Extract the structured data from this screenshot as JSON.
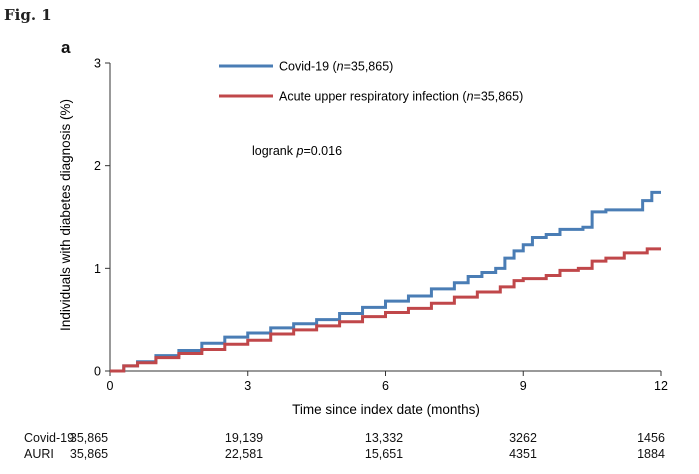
{
  "figure": {
    "label": "Fig. 1",
    "panel": "a"
  },
  "chart_data": {
    "type": "line",
    "title": "",
    "xlabel": "Time since index date (months)",
    "ylabel": "Individuals with diabetes diagnosis (%)",
    "xlim": [
      0,
      12
    ],
    "ylim": [
      0,
      3
    ],
    "xticks": [
      0,
      3,
      6,
      9,
      12
    ],
    "yticks": [
      0,
      1,
      2,
      3
    ],
    "grid": false,
    "legend_position": "top-center",
    "annotation": {
      "prefix": "logrank ",
      "italic": "p",
      "suffix": "=0.016"
    },
    "series": [
      {
        "name": "Covid-19",
        "legend_n": "n",
        "legend_value": "=35,865",
        "color": "#4a7db5",
        "x": [
          0,
          0.3,
          0.6,
          1.0,
          1.5,
          2.0,
          2.5,
          3.0,
          3.5,
          4.0,
          4.5,
          5.0,
          5.5,
          6.0,
          6.5,
          7.0,
          7.5,
          7.8,
          8.1,
          8.4,
          8.6,
          8.8,
          9.0,
          9.2,
          9.5,
          9.8,
          10.0,
          10.3,
          10.5,
          10.8,
          11.2,
          11.6,
          11.8,
          12.0
        ],
        "y": [
          0,
          0.05,
          0.09,
          0.15,
          0.2,
          0.27,
          0.33,
          0.37,
          0.42,
          0.46,
          0.5,
          0.56,
          0.62,
          0.68,
          0.73,
          0.8,
          0.86,
          0.92,
          0.96,
          1.0,
          1.1,
          1.17,
          1.23,
          1.3,
          1.33,
          1.38,
          1.38,
          1.4,
          1.55,
          1.57,
          1.57,
          1.66,
          1.74,
          1.74
        ]
      },
      {
        "name": "Acute upper respiratory infection",
        "legend_n": "n",
        "legend_value": "=35,865",
        "color": "#c0474a",
        "x": [
          0,
          0.3,
          0.6,
          1.0,
          1.5,
          2.0,
          2.5,
          3.0,
          3.5,
          4.0,
          4.5,
          5.0,
          5.5,
          6.0,
          6.5,
          7.0,
          7.5,
          8.0,
          8.5,
          8.8,
          9.0,
          9.5,
          9.8,
          10.2,
          10.5,
          10.8,
          11.2,
          11.7,
          12.0
        ],
        "y": [
          0,
          0.05,
          0.08,
          0.13,
          0.17,
          0.21,
          0.26,
          0.3,
          0.36,
          0.4,
          0.44,
          0.48,
          0.53,
          0.57,
          0.61,
          0.66,
          0.72,
          0.77,
          0.82,
          0.88,
          0.9,
          0.93,
          0.98,
          1.0,
          1.07,
          1.1,
          1.15,
          1.19,
          1.19
        ]
      }
    ]
  },
  "risk_table": {
    "times": [
      0,
      3,
      6,
      9,
      12
    ],
    "rows": [
      {
        "label": "Covid-19",
        "values": [
          "35,865",
          "19,139",
          "13,332",
          "3262",
          "1456"
        ]
      },
      {
        "label": "AURI",
        "values": [
          "35,865",
          "22,581",
          "15,651",
          "4351",
          "1884"
        ]
      }
    ]
  }
}
